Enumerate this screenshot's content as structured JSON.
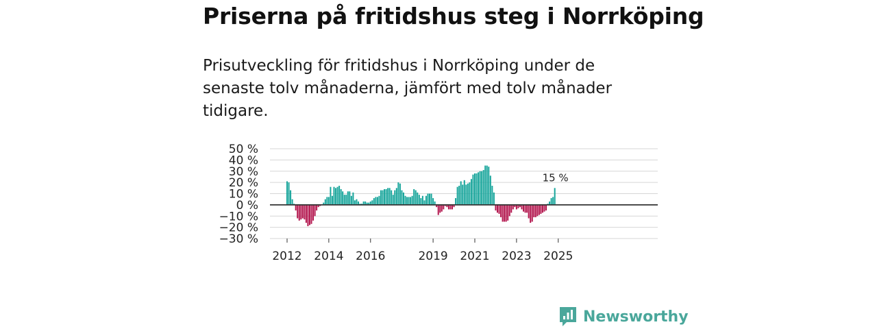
{
  "chart_data": {
    "type": "bar",
    "title": "Priserna på fritidshus steg i Norrköping",
    "subtitle": "Prisutveckling för fritidshus i Norrköping under de senaste tolv månaderna, jämfört med tolv månader tidigare.",
    "y_unit": "%",
    "ylim": [
      -30,
      50
    ],
    "yticks": [
      {
        "value": 50,
        "label": "50 %"
      },
      {
        "value": 40,
        "label": "40 %"
      },
      {
        "value": 30,
        "label": "30 %"
      },
      {
        "value": 20,
        "label": "20 %"
      },
      {
        "value": 10,
        "label": "10 %"
      },
      {
        "value": 0,
        "label": "0 %"
      },
      {
        "value": -10,
        "label": "−10 %"
      },
      {
        "value": -20,
        "label": "−20 %"
      },
      {
        "value": -30,
        "label": "−30 %"
      }
    ],
    "xticks": [
      {
        "year": 2012,
        "label": "2012"
      },
      {
        "year": 2014,
        "label": "2014"
      },
      {
        "year": 2016,
        "label": "2016"
      },
      {
        "year": 2019,
        "label": "2019"
      },
      {
        "year": 2021,
        "label": "2021"
      },
      {
        "year": 2023,
        "label": "2023"
      },
      {
        "year": 2025,
        "label": "2025"
      }
    ],
    "start": {
      "year": 2012,
      "month": 1
    },
    "interval": "month",
    "colors": {
      "positive": "#17a59b",
      "negative": "#b3164e",
      "zero_line": "#333333",
      "grid": "#d6d6d6"
    },
    "annotation": {
      "label": "15 %",
      "value": 15
    },
    "values": [
      21,
      20,
      13,
      5,
      1,
      -5,
      -12,
      -14,
      -13,
      -12,
      -13,
      -16,
      -19,
      -18,
      -17,
      -14,
      -10,
      -5,
      -2,
      -1,
      0,
      2,
      5,
      7,
      7,
      16,
      8,
      16,
      15,
      16,
      17,
      14,
      12,
      9,
      9,
      12,
      12,
      8,
      11,
      4,
      5,
      3,
      1,
      1,
      3,
      3,
      2,
      2,
      3,
      4,
      6,
      7,
      7,
      8,
      13,
      13,
      14,
      14,
      15,
      15,
      13,
      9,
      13,
      15,
      20,
      19,
      13,
      11,
      8,
      7,
      7,
      7,
      8,
      14,
      13,
      11,
      9,
      6,
      8,
      4,
      8,
      10,
      10,
      10,
      6,
      3,
      -2,
      -9,
      -7,
      -6,
      -4,
      -1,
      -2,
      -4,
      -4,
      -4,
      -2,
      6,
      16,
      17,
      21,
      18,
      22,
      18,
      19,
      20,
      23,
      27,
      28,
      28,
      29,
      30,
      30,
      31,
      35,
      35,
      34,
      26,
      17,
      11,
      -5,
      -7,
      -8,
      -11,
      -15,
      -15,
      -15,
      -14,
      -10,
      -7,
      -4,
      -2,
      -4,
      -3,
      -2,
      -4,
      -6,
      -7,
      -7,
      -12,
      -16,
      -15,
      -11,
      -11,
      -10,
      -9,
      -8,
      -7,
      -6,
      -5,
      1,
      3,
      6,
      7,
      15
    ]
  },
  "brand": {
    "name": "Newsworthy",
    "color": "#4aa79b"
  }
}
